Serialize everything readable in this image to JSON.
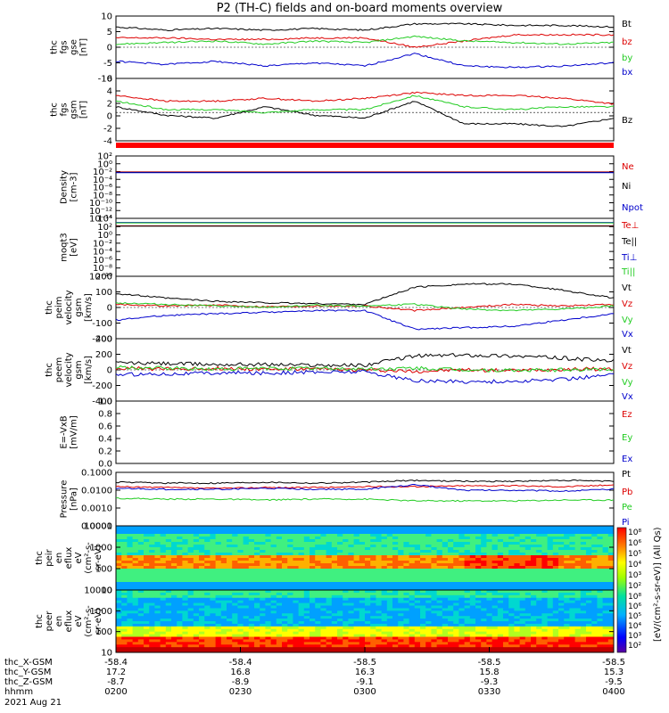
{
  "title": "P2 (TH-C) fields and on-board moments overview",
  "colors": {
    "black": "#000000",
    "red": "#dd0000",
    "green": "#22cc22",
    "blue": "#0000cc"
  },
  "colorbar": {
    "ticks": [
      "10⁸",
      "10⁶",
      "10⁵",
      "10⁴",
      "10³",
      "10²"
    ],
    "ticks2": [
      "10⁸",
      "10⁶",
      "10⁵",
      "10⁴",
      "10³",
      "10²"
    ],
    "label": "[eV/(cm²-s-sr-eV)] (All Qs)"
  },
  "footer": {
    "rows": [
      {
        "label": "thc_X-GSM",
        "values": [
          "-58.4",
          "-58.4",
          "-58.5",
          "-58.5",
          "-58.5"
        ]
      },
      {
        "label": "thc_Y-GSM",
        "values": [
          "17.2",
          "16.8",
          "16.3",
          "15.8",
          "15.3"
        ]
      },
      {
        "label": "thc_Z-GSM",
        "values": [
          "-8.7",
          "-8.9",
          "-9.1",
          "-9.3",
          "-9.5"
        ]
      },
      {
        "label": "hhmm",
        "values": [
          "0200",
          "0230",
          "0300",
          "0330",
          "0400"
        ]
      }
    ],
    "date": "2021 Aug 21"
  },
  "chart_data": [
    {
      "type": "line",
      "ylabel": [
        "thc",
        "fgs",
        "gse",
        "[nT]"
      ],
      "ylim": [
        -10,
        10
      ],
      "yticks": [
        "10",
        "5",
        "0",
        "-5",
        "-10"
      ],
      "legend": [
        {
          "name": "Bt",
          "color": "black"
        },
        {
          "name": "bz",
          "color": "red"
        },
        {
          "name": "by",
          "color": "green"
        },
        {
          "name": "bx",
          "color": "blue"
        }
      ],
      "series": [
        {
          "name": "Bt",
          "color": "black",
          "x": [
            0,
            0.1,
            0.2,
            0.3,
            0.4,
            0.5,
            0.6,
            0.7,
            0.8,
            0.9,
            1.0
          ],
          "y": [
            6.5,
            5.5,
            6,
            5.5,
            6,
            5.5,
            7.5,
            7.5,
            7,
            7,
            6.5
          ]
        },
        {
          "name": "bz",
          "color": "red",
          "x": [
            0,
            0.1,
            0.2,
            0.3,
            0.4,
            0.5,
            0.6,
            0.7,
            0.8,
            0.9,
            1.0
          ],
          "y": [
            3,
            3,
            2.5,
            2.5,
            3,
            3,
            0,
            2,
            4,
            4,
            4
          ]
        },
        {
          "name": "by",
          "color": "green",
          "x": [
            0,
            0.1,
            0.2,
            0.3,
            0.4,
            0.5,
            0.6,
            0.7,
            0.8,
            0.9,
            1.0
          ],
          "y": [
            1,
            1.5,
            2,
            1,
            2,
            1.5,
            3.5,
            2,
            1.5,
            1,
            1.5
          ]
        },
        {
          "name": "bx",
          "color": "blue",
          "x": [
            0,
            0.1,
            0.2,
            0.3,
            0.4,
            0.5,
            0.6,
            0.7,
            0.8,
            0.9,
            1.0
          ],
          "y": [
            -4.5,
            -5.5,
            -4.5,
            -6,
            -5,
            -6,
            -2,
            -6,
            -6.5,
            -6,
            -5
          ]
        }
      ]
    },
    {
      "type": "line",
      "ylabel": [
        "thc",
        "fgs",
        "gsm",
        "[nT]"
      ],
      "ylim": [
        -5,
        6
      ],
      "yticks": [
        "6",
        "4",
        "2",
        "0",
        "-2",
        "-4"
      ],
      "legend": [
        {
          "name": "Bz",
          "color": "black"
        }
      ],
      "series": [
        {
          "name": "Bz",
          "color": "black",
          "x": [
            0,
            0.1,
            0.2,
            0.3,
            0.4,
            0.5,
            0.6,
            0.7,
            0.8,
            0.9,
            1.0
          ],
          "y": [
            1,
            -0.5,
            -1,
            1,
            -0.5,
            -1,
            2,
            -2,
            -2,
            -2.5,
            -1
          ]
        },
        {
          "name": "",
          "color": "red",
          "x": [
            0,
            0.1,
            0.2,
            0.3,
            0.4,
            0.5,
            0.6,
            0.7,
            0.8,
            0.9,
            1.0
          ],
          "y": [
            3,
            2,
            2,
            2.5,
            2,
            2.5,
            3.5,
            3,
            3,
            2.5,
            1.5
          ]
        },
        {
          "name": "",
          "color": "green",
          "x": [
            0,
            0.1,
            0.2,
            0.3,
            0.4,
            0.5,
            0.6,
            0.7,
            0.8,
            0.9,
            1.0
          ],
          "y": [
            2,
            0.5,
            0.5,
            0,
            0.5,
            0.5,
            3,
            1,
            0.5,
            1,
            1
          ]
        }
      ]
    },
    {
      "type": "line",
      "ylabel": [
        "Density",
        "[cm-3]"
      ],
      "ylim": [
        -12,
        4
      ],
      "log": true,
      "yticks": [
        "10²",
        "10⁰",
        "10⁻²",
        "10⁻⁴",
        "10⁻⁶",
        "10⁻⁸",
        "10⁻¹⁰",
        "10⁻¹²",
        "10⁻¹⁴"
      ],
      "legend": [
        {
          "name": "Ne",
          "color": "red"
        },
        {
          "name": "Ni",
          "color": "black"
        },
        {
          "name": "Npot",
          "color": "blue"
        }
      ],
      "series": [
        {
          "name": "Ne",
          "color": "red",
          "x": [
            0,
            1
          ],
          "y": [
            -0.1,
            -0.1
          ]
        },
        {
          "name": "Ni",
          "color": "black",
          "x": [
            0,
            1
          ],
          "y": [
            -0.2,
            -0.2
          ]
        },
        {
          "name": "Npot",
          "color": "blue",
          "x": [
            0,
            1
          ],
          "y": [
            -0.3,
            -0.3
          ]
        }
      ]
    },
    {
      "type": "line",
      "ylabel": [
        "moqt3",
        "[eV]"
      ],
      "ylim": [
        -10,
        4
      ],
      "log": true,
      "yticks": [
        "10⁴",
        "10²",
        "10⁰",
        "10⁻²",
        "10⁻⁴",
        "10⁻⁶",
        "10⁻⁸",
        "10⁻¹⁰"
      ],
      "legend": [
        {
          "name": "Te⊥",
          "color": "red"
        },
        {
          "name": "Te||",
          "color": "black"
        },
        {
          "name": "Ti⊥",
          "color": "blue"
        },
        {
          "name": "Ti||",
          "color": "green"
        }
      ],
      "series": [
        {
          "name": "Te⊥",
          "color": "red",
          "x": [
            0,
            1
          ],
          "y": [
            2.2,
            2.2
          ]
        },
        {
          "name": "Te||",
          "color": "black",
          "x": [
            0,
            1
          ],
          "y": [
            2.1,
            2.1
          ]
        },
        {
          "name": "Ti⊥",
          "color": "blue",
          "x": [
            0,
            1
          ],
          "y": [
            3.0,
            3.0
          ]
        },
        {
          "name": "Ti||",
          "color": "green",
          "x": [
            0,
            1
          ],
          "y": [
            2.9,
            2.9
          ]
        }
      ]
    },
    {
      "type": "line",
      "ylabel": [
        "thc",
        "peim",
        "velocity",
        "gsm",
        "[km/s]"
      ],
      "ylim": [
        -200,
        200
      ],
      "yticks": [
        "200",
        "100",
        "0",
        "-100",
        "-200"
      ],
      "legend": [
        {
          "name": "Vt",
          "color": "black"
        },
        {
          "name": "Vz",
          "color": "red"
        },
        {
          "name": "Vy",
          "color": "green"
        },
        {
          "name": "Vx",
          "color": "blue"
        }
      ],
      "series": [
        {
          "name": "Vt",
          "color": "black",
          "x": [
            0,
            0.1,
            0.2,
            0.3,
            0.4,
            0.5,
            0.6,
            0.7,
            0.8,
            0.9,
            1.0
          ],
          "y": [
            90,
            60,
            40,
            30,
            25,
            20,
            130,
            150,
            150,
            110,
            60
          ]
        },
        {
          "name": "Vz",
          "color": "red",
          "x": [
            0,
            0.1,
            0.2,
            0.3,
            0.4,
            0.5,
            0.6,
            0.7,
            0.8,
            0.9,
            1.0
          ],
          "y": [
            20,
            10,
            15,
            5,
            10,
            10,
            -20,
            0,
            20,
            10,
            20
          ]
        },
        {
          "name": "Vy",
          "color": "green",
          "x": [
            0,
            0.1,
            0.2,
            0.3,
            0.4,
            0.5,
            0.6,
            0.7,
            0.8,
            0.9,
            1.0
          ],
          "y": [
            30,
            20,
            10,
            0,
            15,
            10,
            20,
            -10,
            -20,
            -10,
            10
          ]
        },
        {
          "name": "Vx",
          "color": "blue",
          "x": [
            0,
            0.1,
            0.2,
            0.3,
            0.4,
            0.5,
            0.6,
            0.7,
            0.8,
            0.9,
            1.0
          ],
          "y": [
            -80,
            -50,
            -40,
            -30,
            -20,
            -20,
            -140,
            -130,
            -120,
            -80,
            -40
          ]
        }
      ]
    },
    {
      "type": "line",
      "ylabel": [
        "thc",
        "peem",
        "velocity",
        "gsm",
        "[km/s]"
      ],
      "ylim": [
        -400,
        400
      ],
      "yticks": [
        "400",
        "200",
        "0",
        "-200",
        "-400"
      ],
      "legend": [
        {
          "name": "Vt",
          "color": "black"
        },
        {
          "name": "Vz",
          "color": "red"
        },
        {
          "name": "Vy",
          "color": "green"
        },
        {
          "name": "Vx",
          "color": "blue"
        }
      ],
      "series": [
        {
          "name": "Vt",
          "color": "black",
          "x": [
            0,
            0.1,
            0.2,
            0.3,
            0.4,
            0.5,
            0.6,
            0.7,
            0.8,
            0.9,
            1.0
          ],
          "y": [
            90,
            80,
            70,
            70,
            60,
            60,
            180,
            190,
            180,
            150,
            110
          ]
        },
        {
          "name": "Vz",
          "color": "red",
          "x": [
            0,
            0.1,
            0.2,
            0.3,
            0.4,
            0.5,
            0.6,
            0.7,
            0.8,
            0.9,
            1.0
          ],
          "y": [
            20,
            10,
            20,
            10,
            10,
            0,
            -20,
            0,
            -10,
            10,
            10
          ]
        },
        {
          "name": "Vy",
          "color": "green",
          "x": [
            0,
            0.1,
            0.2,
            0.3,
            0.4,
            0.5,
            0.6,
            0.7,
            0.8,
            0.9,
            1.0
          ],
          "y": [
            30,
            20,
            10,
            20,
            20,
            10,
            20,
            0,
            -10,
            0,
            10
          ]
        },
        {
          "name": "Vx",
          "color": "blue",
          "x": [
            0,
            0.1,
            0.2,
            0.3,
            0.4,
            0.5,
            0.6,
            0.7,
            0.8,
            0.9,
            1.0
          ],
          "y": [
            -60,
            -50,
            -40,
            -40,
            -30,
            -20,
            -140,
            -150,
            -150,
            -120,
            -60
          ]
        }
      ]
    },
    {
      "type": "line",
      "ylabel": [
        "E=-VxB",
        "[mV/m]"
      ],
      "ylim": [
        0,
        1
      ],
      "yticks": [
        "1.0",
        "0.8",
        "0.6",
        "0.4",
        "0.2",
        "0.0"
      ],
      "legend": [
        {
          "name": "Ez",
          "color": "red"
        },
        {
          "name": "Ey",
          "color": "green"
        },
        {
          "name": "Ex",
          "color": "blue"
        }
      ],
      "series": []
    },
    {
      "type": "line",
      "ylabel": [
        "Pressure",
        "[nPa]"
      ],
      "ylim": [
        -4,
        -1
      ],
      "log": true,
      "yticks": [
        "0.1000",
        "0.0100",
        "0.0010",
        "0.0001"
      ],
      "legend": [
        {
          "name": "Pt",
          "color": "black"
        },
        {
          "name": "Pb",
          "color": "red"
        },
        {
          "name": "Pe",
          "color": "green"
        },
        {
          "name": "Pi",
          "color": "blue"
        }
      ],
      "series": [
        {
          "name": "Pt",
          "color": "black",
          "x": [
            0,
            0.1,
            0.2,
            0.3,
            0.4,
            0.5,
            0.6,
            0.7,
            0.8,
            0.9,
            1.0
          ],
          "y": [
            -1.55,
            -1.6,
            -1.6,
            -1.55,
            -1.6,
            -1.55,
            -1.45,
            -1.5,
            -1.5,
            -1.45,
            -1.5
          ]
        },
        {
          "name": "Pb",
          "color": "red",
          "x": [
            0,
            0.1,
            0.2,
            0.3,
            0.4,
            0.5,
            0.6,
            0.7,
            0.8,
            0.9,
            1.0
          ],
          "y": [
            -1.8,
            -1.85,
            -1.9,
            -1.85,
            -1.85,
            -1.8,
            -1.8,
            -1.75,
            -1.75,
            -1.8,
            -1.7
          ]
        },
        {
          "name": "Pe",
          "color": "green",
          "x": [
            0,
            0.1,
            0.2,
            0.3,
            0.4,
            0.5,
            0.6,
            0.7,
            0.8,
            0.9,
            1.0
          ],
          "y": [
            -2.45,
            -2.5,
            -2.5,
            -2.55,
            -2.5,
            -2.5,
            -2.6,
            -2.6,
            -2.6,
            -2.55,
            -2.55
          ]
        },
        {
          "name": "Pi",
          "color": "blue",
          "x": [
            0,
            0.1,
            0.2,
            0.3,
            0.4,
            0.5,
            0.6,
            0.7,
            0.8,
            0.9,
            1.0
          ],
          "y": [
            -1.9,
            -1.95,
            -1.95,
            -1.9,
            -1.95,
            -1.95,
            -1.7,
            -2.0,
            -2.0,
            -2.05,
            -1.95
          ]
        }
      ]
    },
    {
      "type": "heatmap",
      "ylabel": [
        "thc",
        "peir",
        "en",
        "eflux",
        "eV",
        "(cm²-s-",
        "sr-eV)"
      ],
      "ylim": [
        1,
        4
      ],
      "log": true,
      "yticks": [
        "10000",
        "1000",
        "100",
        "10"
      ]
    },
    {
      "type": "heatmap",
      "ylabel": [
        "thc",
        "peer",
        "en",
        "eflux",
        "eV",
        "(cm²-s-",
        "sr-eV)"
      ],
      "ylim": [
        1,
        4.5
      ],
      "log": true,
      "yticks": [
        "10000",
        "1000",
        "100",
        "10"
      ]
    }
  ]
}
